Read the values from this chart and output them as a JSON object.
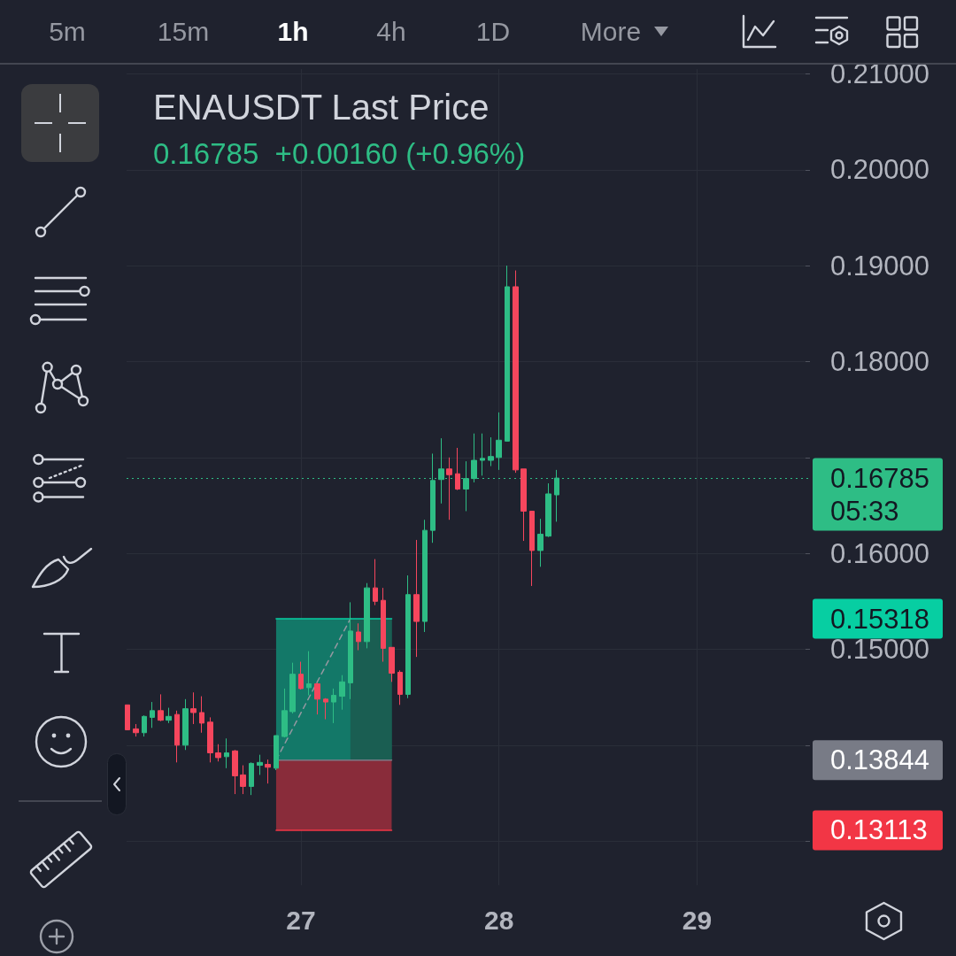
{
  "chart_data": {
    "type": "candlestick",
    "title": "ENAUSDT Last Price",
    "subtitle": "0.16785  +0.00160 (+0.96%)",
    "x": [
      26.125,
      26.1667,
      26.2083,
      26.25,
      26.2917,
      26.3333,
      26.375,
      26.4167,
      26.4583,
      26.5,
      26.5417,
      26.5833,
      26.625,
      26.6667,
      26.7083,
      26.75,
      26.7917,
      26.8333,
      26.875,
      26.9167,
      26.9583,
      27,
      27.0417,
      27.0833,
      27.125,
      27.1667,
      27.2083,
      27.25,
      27.2917,
      27.3333,
      27.375,
      27.4167,
      27.4583,
      27.5,
      27.5417,
      27.5833,
      27.625,
      27.6667,
      27.7083,
      27.75,
      27.7917,
      27.8333,
      27.875,
      27.9167,
      27.9583,
      28,
      28.0417,
      28.0833,
      28.125,
      28.1667,
      28.2083,
      28.25,
      28.2917
    ],
    "ohlc": [
      [
        0.1442,
        0.1442,
        0.1416,
        0.1416
      ],
      [
        0.1417,
        0.1422,
        0.1409,
        0.1413
      ],
      [
        0.1413,
        0.1431,
        0.1409,
        0.143
      ],
      [
        0.1429,
        0.1445,
        0.1418,
        0.1436
      ],
      [
        0.1436,
        0.1453,
        0.1425,
        0.1426
      ],
      [
        0.1426,
        0.1439,
        0.1423,
        0.143
      ],
      [
        0.1432,
        0.1436,
        0.1382,
        0.14
      ],
      [
        0.14,
        0.1448,
        0.1395,
        0.1438
      ],
      [
        0.1438,
        0.1455,
        0.1422,
        0.1434
      ],
      [
        0.1434,
        0.1451,
        0.1413,
        0.1423
      ],
      [
        0.1424,
        0.1429,
        0.1382,
        0.1392
      ],
      [
        0.1392,
        0.1401,
        0.1383,
        0.1387
      ],
      [
        0.1388,
        0.1407,
        0.1376,
        0.1392
      ],
      [
        0.1394,
        0.1395,
        0.1349,
        0.1368
      ],
      [
        0.1369,
        0.1379,
        0.1349,
        0.1357
      ],
      [
        0.1357,
        0.1382,
        0.1348,
        0.1381
      ],
      [
        0.1379,
        0.139,
        0.1369,
        0.1382
      ],
      [
        0.138,
        0.1385,
        0.136,
        0.1377
      ],
      [
        0.1376,
        0.141,
        0.1374,
        0.141
      ],
      [
        0.1409,
        0.1459,
        0.1408,
        0.1436
      ],
      [
        0.1435,
        0.1486,
        0.1433,
        0.1474
      ],
      [
        0.1474,
        0.1487,
        0.1458,
        0.1459
      ],
      [
        0.146,
        0.1498,
        0.1452,
        0.1464
      ],
      [
        0.1464,
        0.1465,
        0.1432,
        0.1448
      ],
      [
        0.1448,
        0.1449,
        0.1427,
        0.1445
      ],
      [
        0.1445,
        0.1459,
        0.1423,
        0.1452
      ],
      [
        0.1451,
        0.1473,
        0.1437,
        0.1466
      ],
      [
        0.1465,
        0.1549,
        0.1448,
        0.1519
      ],
      [
        0.1518,
        0.1527,
        0.1499,
        0.1508
      ],
      [
        0.1508,
        0.1569,
        0.1501,
        0.1564
      ],
      [
        0.1564,
        0.1594,
        0.1546,
        0.155
      ],
      [
        0.1551,
        0.1564,
        0.1487,
        0.1501
      ],
      [
        0.1502,
        0.1502,
        0.1466,
        0.1475
      ],
      [
        0.1476,
        0.1478,
        0.1442,
        0.1453
      ],
      [
        0.1453,
        0.1577,
        0.1449,
        0.1557
      ],
      [
        0.1557,
        0.1614,
        0.1492,
        0.1529
      ],
      [
        0.1529,
        0.1635,
        0.1518,
        0.1624
      ],
      [
        0.1624,
        0.1704,
        0.1611,
        0.1676
      ],
      [
        0.1677,
        0.172,
        0.1652,
        0.1688
      ],
      [
        0.1688,
        0.17,
        0.1635,
        0.1682
      ],
      [
        0.1683,
        0.171,
        0.1666,
        0.1667
      ],
      [
        0.1667,
        0.1696,
        0.1644,
        0.1678
      ],
      [
        0.1678,
        0.1725,
        0.1674,
        0.1697
      ],
      [
        0.1697,
        0.1725,
        0.1681,
        0.1699
      ],
      [
        0.1697,
        0.1721,
        0.1691,
        0.1701
      ],
      [
        0.17,
        0.1747,
        0.1687,
        0.1718
      ],
      [
        0.1717,
        0.19,
        0.1717,
        0.1878
      ],
      [
        0.1878,
        0.1895,
        0.1684,
        0.1687
      ],
      [
        0.1688,
        0.1688,
        0.1613,
        0.1644
      ],
      [
        0.1644,
        0.1644,
        0.1566,
        0.1603
      ],
      [
        0.1603,
        0.1636,
        0.1586,
        0.162
      ],
      [
        0.1618,
        0.1673,
        0.1617,
        0.1662
      ],
      [
        0.1661,
        0.1687,
        0.1633,
        0.16785
      ]
    ],
    "colors": [
      "#f6465d",
      "#f6465d",
      "#2ebd85",
      "#2ebd85",
      "#f6465d",
      "#2ebd85",
      "#f6465d",
      "#2ebd85",
      "#f6465d",
      "#f6465d",
      "#f6465d",
      "#f6465d",
      "#2ebd85",
      "#f6465d",
      "#f6465d",
      "#2ebd85",
      "#2ebd85",
      "#f6465d",
      "#2ebd85",
      "#2ebd85",
      "#2ebd85",
      "#f6465d",
      "#2ebd85",
      "#f6465d",
      "#f6465d",
      "#2ebd85",
      "#2ebd85",
      "#2ebd85",
      "#f6465d",
      "#2ebd85",
      "#f6465d",
      "#f6465d",
      "#f6465d",
      "#f6465d",
      "#2ebd85",
      "#f6465d",
      "#2ebd85",
      "#2ebd85",
      "#2ebd85",
      "#f6465d",
      "#f6465d",
      "#2ebd85",
      "#2ebd85",
      "#2ebd85",
      "#2ebd85",
      "#2ebd85",
      "#2ebd85",
      "#f6465d",
      "#f6465d",
      "#f6465d",
      "#2ebd85",
      "#2ebd85",
      "#2ebd85"
    ],
    "series": [
      {
        "type": "line",
        "color": "#9598a1",
        "line_style": "dashed",
        "x": [
          26.875,
          27.25
        ],
        "values": [
          0.13844,
          0.15318
        ]
      },
      {
        "type": "line",
        "color": "#07cea2",
        "x": [
          26.875,
          27.4583
        ],
        "values": [
          0.15318,
          0.15318
        ],
        "lower": [
          0.13844,
          0.13844
        ],
        "upper": [
          0.15318,
          0.15318
        ]
      },
      {
        "type": "line",
        "color": "#159a76",
        "x": [
          27.25,
          27.4583
        ],
        "values": [
          null,
          null
        ],
        "lower": [
          0.13844,
          0.13844
        ],
        "upper": [
          0.15318,
          0.15318
        ]
      },
      {
        "type": "line",
        "color": "#f23645",
        "x": [
          26.875,
          27.4583
        ],
        "values": [
          0.13113,
          0.13113
        ],
        "lower": [
          0.13113,
          0.13113
        ],
        "upper": [
          0.13844,
          0.13844
        ]
      },
      {
        "type": "line",
        "color": "#787b86",
        "x": [
          26.875,
          27.4583
        ],
        "values": [
          0.13844,
          0.13844
        ]
      }
    ],
    "xlim": [
      26.12,
      29.57
    ],
    "xticks": [
      27,
      28,
      29
    ],
    "ylim": [
      0.1254,
      0.2105
    ],
    "yticks": [
      {
        "value": 0.13,
        "label": null
      },
      {
        "value": 0.14,
        "label": null
      },
      {
        "value": 0.15,
        "label": "0.15000"
      },
      {
        "value": 0.16,
        "label": "0.16000"
      },
      {
        "value": 0.17,
        "label": null
      },
      {
        "value": 0.18,
        "label": "0.18000"
      },
      {
        "value": 0.19,
        "label": "0.19000"
      },
      {
        "value": 0.2,
        "label": "0.20000"
      },
      {
        "value": 0.21,
        "label": "0.21000"
      }
    ],
    "y2lim": [
      0.1254,
      0.2105
    ],
    "y2ticks": [
      0.15318,
      0.13844,
      0.13113
    ],
    "grid": true,
    "marker": "none",
    "ref_lines": [
      {
        "axis": "y",
        "value": 0.16785,
        "label": "0.16785\n05:33",
        "color": "#2ebd85",
        "line_style": "dotted"
      }
    ],
    "annotations": [
      "5m",
      "15m",
      "1h",
      "4h",
      "1D",
      "More"
    ]
  }
}
